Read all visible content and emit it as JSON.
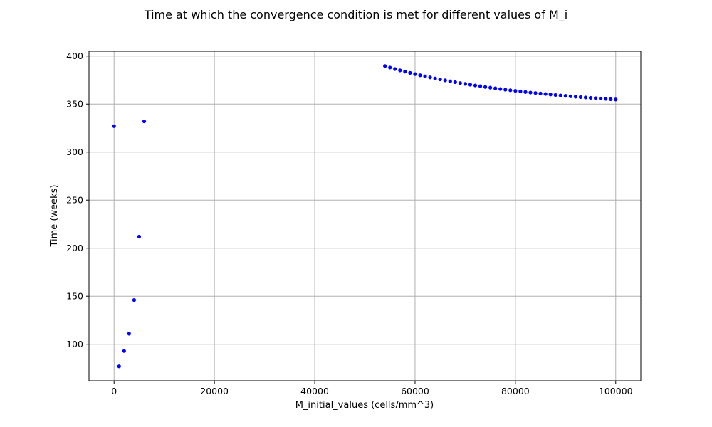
{
  "chart_data": {
    "type": "scatter",
    "title": "Time at which the convergence condition is met for different values of M_i",
    "xlabel": "M_initial_values (cells/mm^3)",
    "ylabel": "Time (weeks)",
    "xlim": [
      -5000,
      105000
    ],
    "ylim": [
      62,
      405
    ],
    "x_ticks": [
      0,
      20000,
      40000,
      60000,
      80000,
      100000
    ],
    "y_ticks": [
      100,
      150,
      200,
      250,
      300,
      350,
      400
    ],
    "grid": true,
    "marker_color": "#0000ff",
    "series": [
      {
        "x": [
          0,
          1000,
          2000,
          3000,
          4000,
          5000,
          6000,
          54000,
          55000,
          56000,
          57000,
          58000,
          59000,
          60000,
          61000,
          62000,
          63000,
          64000,
          65000,
          66000,
          67000,
          68000,
          69000,
          70000,
          71000,
          72000,
          73000,
          74000,
          75000,
          76000,
          77000,
          78000,
          79000,
          80000,
          81000,
          82000,
          83000,
          84000,
          85000,
          86000,
          87000,
          88000,
          89000,
          90000,
          91000,
          92000,
          93000,
          94000,
          95000,
          96000,
          97000,
          98000,
          99000,
          100000
        ],
        "y": [
          327,
          77,
          93,
          111,
          146,
          212,
          332,
          389.6,
          388.0,
          386.5,
          385.1,
          383.8,
          382.5,
          381.2,
          380.0,
          378.9,
          377.8,
          376.7,
          375.7,
          374.7,
          373.7,
          372.8,
          371.9,
          371.0,
          370.2,
          369.4,
          368.6,
          367.8,
          367.1,
          366.4,
          365.7,
          365.0,
          364.4,
          363.8,
          363.2,
          362.6,
          362.0,
          361.5,
          361.0,
          360.5,
          360.0,
          359.5,
          359.0,
          358.6,
          358.1,
          357.7,
          357.3,
          356.9,
          356.5,
          356.1,
          355.8,
          355.4,
          355.1,
          354.8
        ]
      }
    ]
  }
}
